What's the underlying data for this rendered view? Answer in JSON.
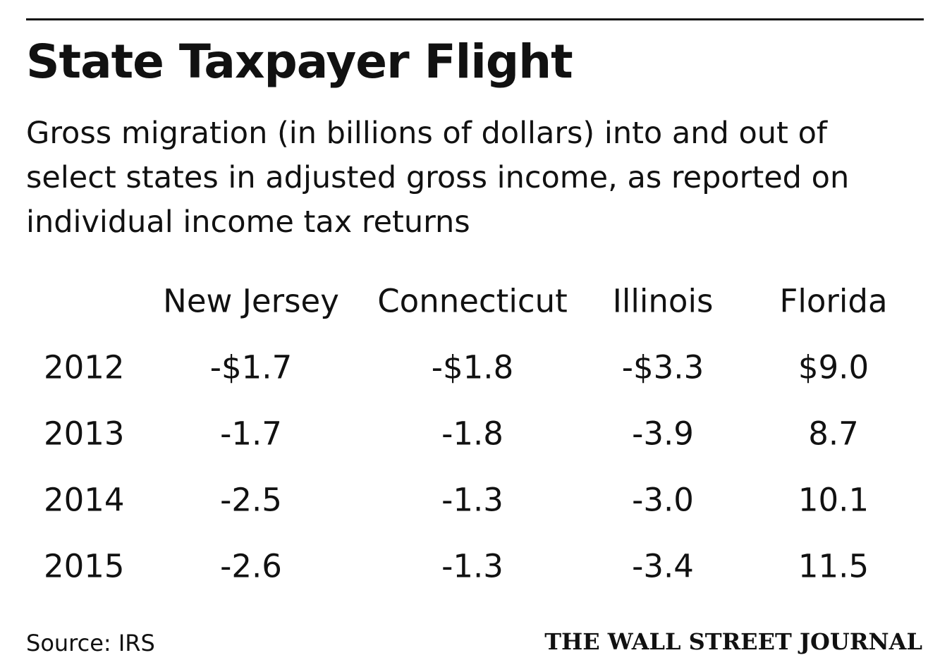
{
  "header": {
    "title": "State Taxpayer Flight",
    "subtitle": "Gross migration (in billions of dollars) into and out of select states in adjusted gross income, as reported on individual income tax returns"
  },
  "chart_data": {
    "type": "table",
    "title": "State Taxpayer Flight",
    "subtitle": "Gross migration (in billions of dollars) into and out of select states in adjusted gross income, as reported on individual income tax returns",
    "columns": [
      "New Jersey",
      "Connecticut",
      "Illinois",
      "Florida"
    ],
    "rows": [
      {
        "year": "2012",
        "cells": [
          "-$1.7",
          "-$1.8",
          "-$3.3",
          "$9.0"
        ]
      },
      {
        "year": "2013",
        "cells": [
          "-1.7",
          "-1.8",
          "-3.9",
          "8.7"
        ]
      },
      {
        "year": "2014",
        "cells": [
          "-2.5",
          "-1.3",
          "-3.0",
          "10.1"
        ]
      },
      {
        "year": "2015",
        "cells": [
          "-2.6",
          "-1.3",
          "-3.4",
          "11.5"
        ]
      }
    ],
    "series": [
      {
        "name": "New Jersey",
        "values": [
          -1.7,
          -1.7,
          -2.5,
          -2.6
        ]
      },
      {
        "name": "Connecticut",
        "values": [
          -1.8,
          -1.8,
          -1.3,
          -1.3
        ]
      },
      {
        "name": "Illinois",
        "values": [
          -3.3,
          -3.9,
          -3.0,
          -3.4
        ]
      },
      {
        "name": "Florida",
        "values": [
          9.0,
          8.7,
          10.1,
          11.5
        ]
      }
    ],
    "categories": [
      "2012",
      "2013",
      "2014",
      "2015"
    ]
  },
  "footer": {
    "source": "Source: IRS",
    "brand": "THE WALL STREET JOURNAL"
  }
}
